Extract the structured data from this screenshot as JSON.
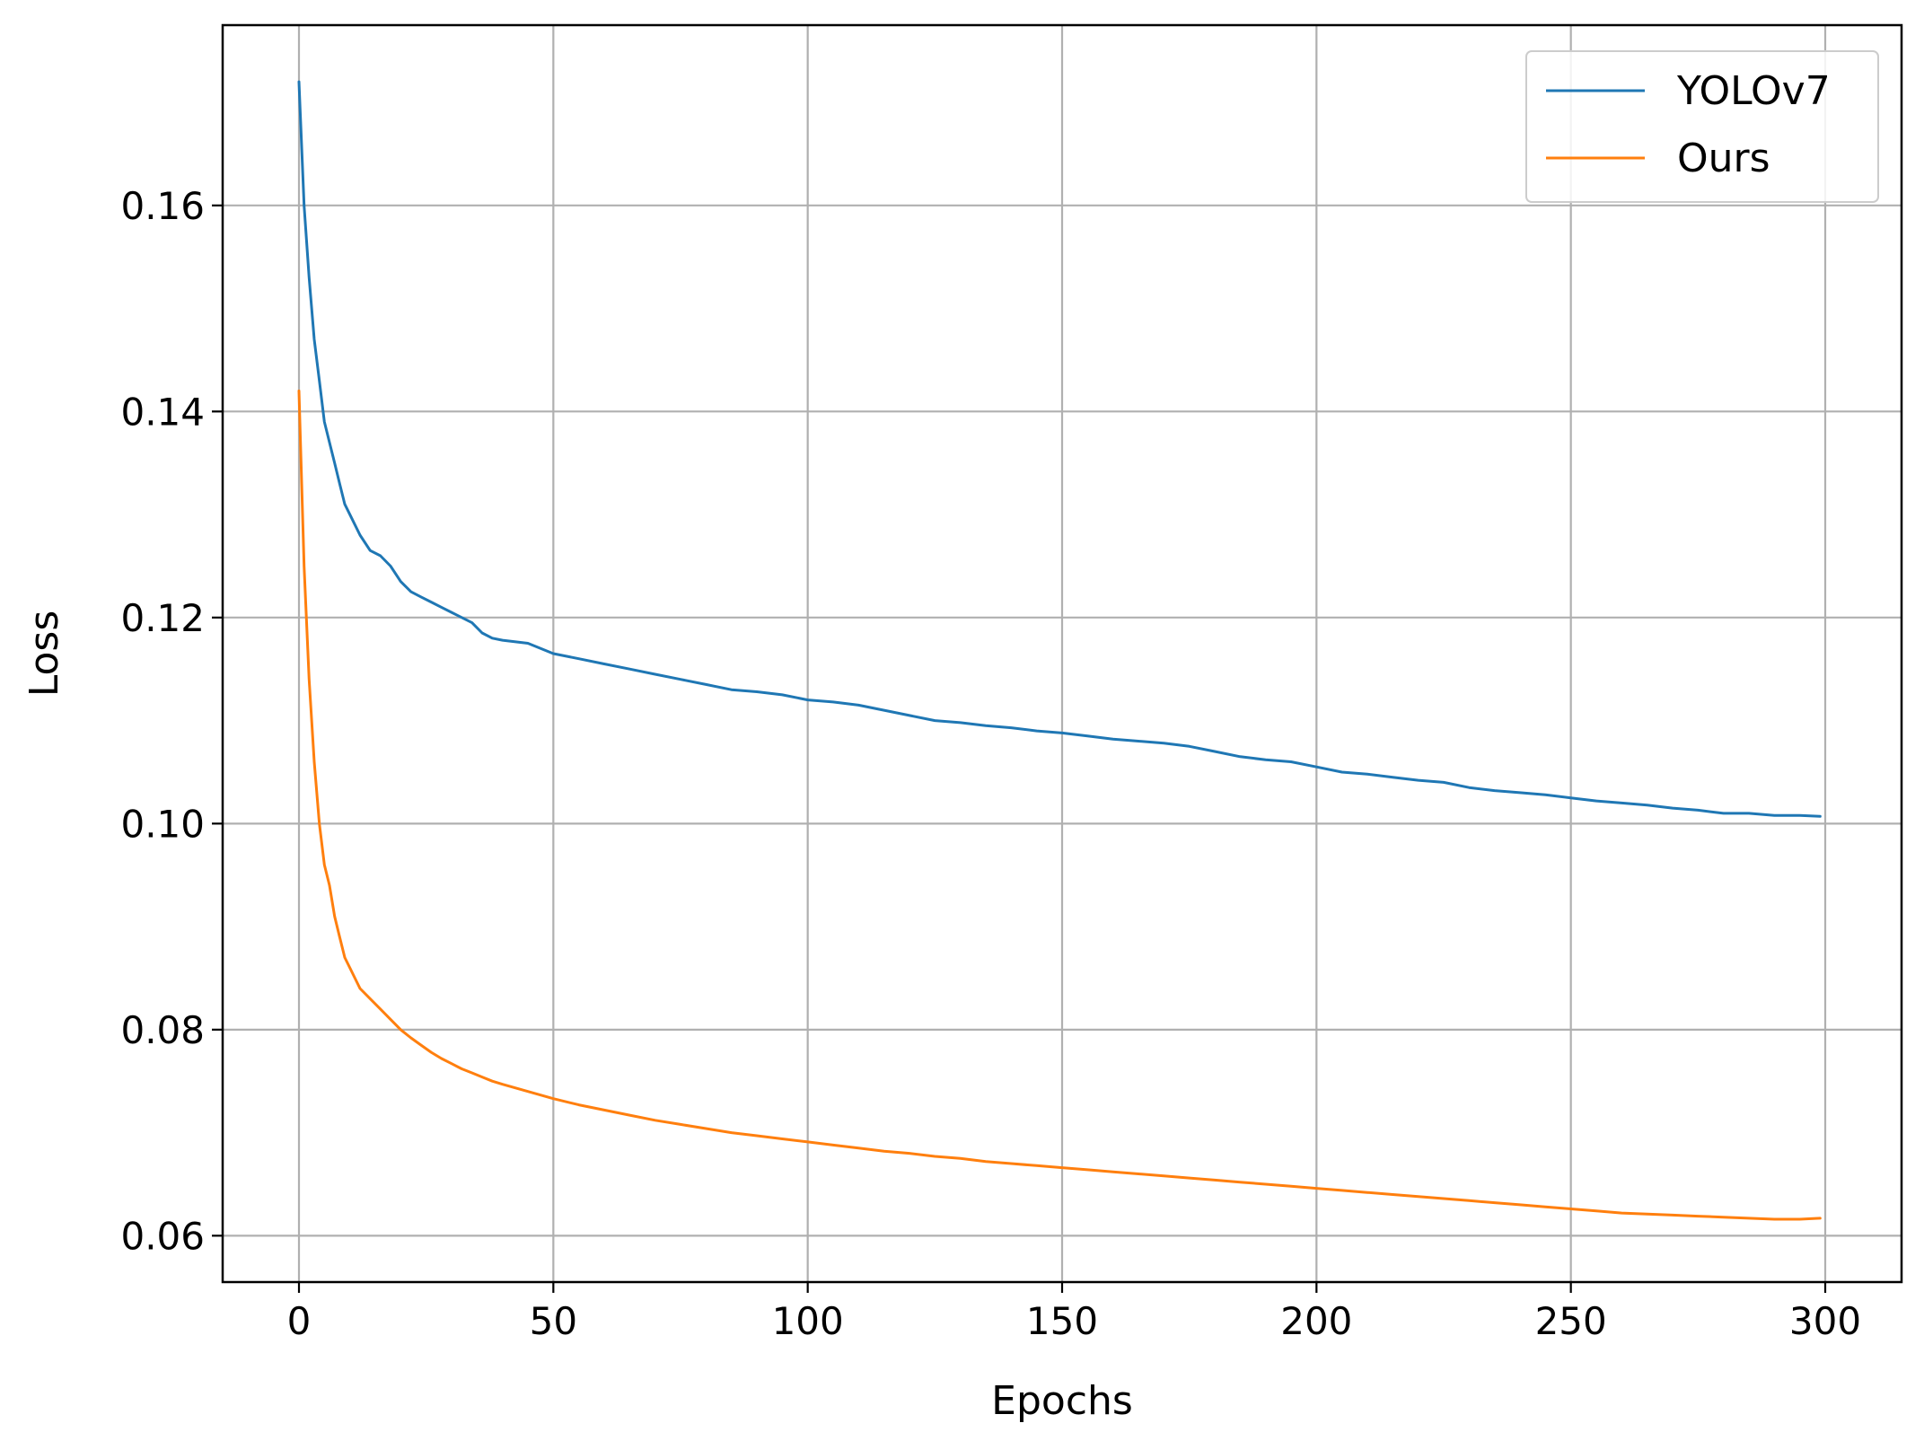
{
  "chart_data": {
    "type": "line",
    "xlabel": "Epochs",
    "ylabel": "Loss",
    "xlim": [
      -15,
      315
    ],
    "ylim": [
      0.0555,
      0.1775
    ],
    "xticks": [
      0,
      50,
      100,
      150,
      200,
      250,
      300
    ],
    "xtick_labels": [
      "0",
      "50",
      "100",
      "150",
      "200",
      "250",
      "300"
    ],
    "yticks": [
      0.06,
      0.08,
      0.1,
      0.12,
      0.14,
      0.16
    ],
    "ytick_labels": [
      "0.06",
      "0.08",
      "0.10",
      "0.12",
      "0.14",
      "0.16"
    ],
    "grid": true,
    "legend_position": "top-right",
    "series": [
      {
        "name": "YOLOv7",
        "color": "#1f77b4",
        "x": [
          0,
          1,
          2,
          3,
          4,
          5,
          6,
          7,
          8,
          9,
          10,
          12,
          14,
          16,
          18,
          20,
          22,
          24,
          26,
          28,
          30,
          32,
          34,
          36,
          38,
          40,
          45,
          50,
          55,
          60,
          65,
          70,
          75,
          80,
          85,
          90,
          95,
          100,
          105,
          110,
          115,
          120,
          125,
          130,
          135,
          140,
          145,
          150,
          155,
          160,
          165,
          170,
          175,
          180,
          185,
          190,
          195,
          200,
          205,
          210,
          215,
          220,
          225,
          230,
          235,
          240,
          245,
          250,
          255,
          260,
          265,
          270,
          275,
          280,
          285,
          290,
          295,
          299
        ],
        "values": [
          0.172,
          0.16,
          0.153,
          0.147,
          0.143,
          0.139,
          0.137,
          0.135,
          0.133,
          0.131,
          0.13,
          0.128,
          0.1265,
          0.126,
          0.125,
          0.1235,
          0.1225,
          0.122,
          0.1215,
          0.121,
          0.1205,
          0.12,
          0.1195,
          0.1185,
          0.118,
          0.1178,
          0.1175,
          0.1165,
          0.116,
          0.1155,
          0.115,
          0.1145,
          0.114,
          0.1135,
          0.113,
          0.1128,
          0.1125,
          0.112,
          0.1118,
          0.1115,
          0.111,
          0.1105,
          0.11,
          0.1098,
          0.1095,
          0.1093,
          0.109,
          0.1088,
          0.1085,
          0.1082,
          0.108,
          0.1078,
          0.1075,
          0.107,
          0.1065,
          0.1062,
          0.106,
          0.1055,
          0.105,
          0.1048,
          0.1045,
          0.1042,
          0.104,
          0.1035,
          0.1032,
          0.103,
          0.1028,
          0.1025,
          0.1022,
          0.102,
          0.1018,
          0.1015,
          0.1013,
          0.101,
          0.101,
          0.1008,
          0.1008,
          0.1007
        ]
      },
      {
        "name": "Ours",
        "color": "#ff7f0e",
        "x": [
          0,
          1,
          2,
          3,
          4,
          5,
          6,
          7,
          8,
          9,
          10,
          12,
          14,
          16,
          18,
          20,
          22,
          24,
          26,
          28,
          30,
          32,
          34,
          36,
          38,
          40,
          45,
          50,
          55,
          60,
          65,
          70,
          75,
          80,
          85,
          90,
          95,
          100,
          105,
          110,
          115,
          120,
          125,
          130,
          135,
          140,
          145,
          150,
          155,
          160,
          165,
          170,
          175,
          180,
          185,
          190,
          195,
          200,
          205,
          210,
          215,
          220,
          225,
          230,
          235,
          240,
          245,
          250,
          255,
          260,
          265,
          270,
          275,
          280,
          285,
          290,
          295,
          299
        ],
        "values": [
          0.142,
          0.125,
          0.114,
          0.106,
          0.1,
          0.096,
          0.094,
          0.091,
          0.089,
          0.087,
          0.086,
          0.084,
          0.083,
          0.082,
          0.081,
          0.08,
          0.0792,
          0.0785,
          0.0778,
          0.0772,
          0.0767,
          0.0762,
          0.0758,
          0.0754,
          0.075,
          0.0747,
          0.074,
          0.0733,
          0.0727,
          0.0722,
          0.0717,
          0.0712,
          0.0708,
          0.0704,
          0.07,
          0.0697,
          0.0694,
          0.0691,
          0.0688,
          0.0685,
          0.0682,
          0.068,
          0.0677,
          0.0675,
          0.0672,
          0.067,
          0.0668,
          0.0666,
          0.0664,
          0.0662,
          0.066,
          0.0658,
          0.0656,
          0.0654,
          0.0652,
          0.065,
          0.0648,
          0.0646,
          0.0644,
          0.0642,
          0.064,
          0.0638,
          0.0636,
          0.0634,
          0.0632,
          0.063,
          0.0628,
          0.0626,
          0.0624,
          0.0622,
          0.0621,
          0.062,
          0.0619,
          0.0618,
          0.0617,
          0.0616,
          0.0616,
          0.0617
        ]
      }
    ]
  }
}
